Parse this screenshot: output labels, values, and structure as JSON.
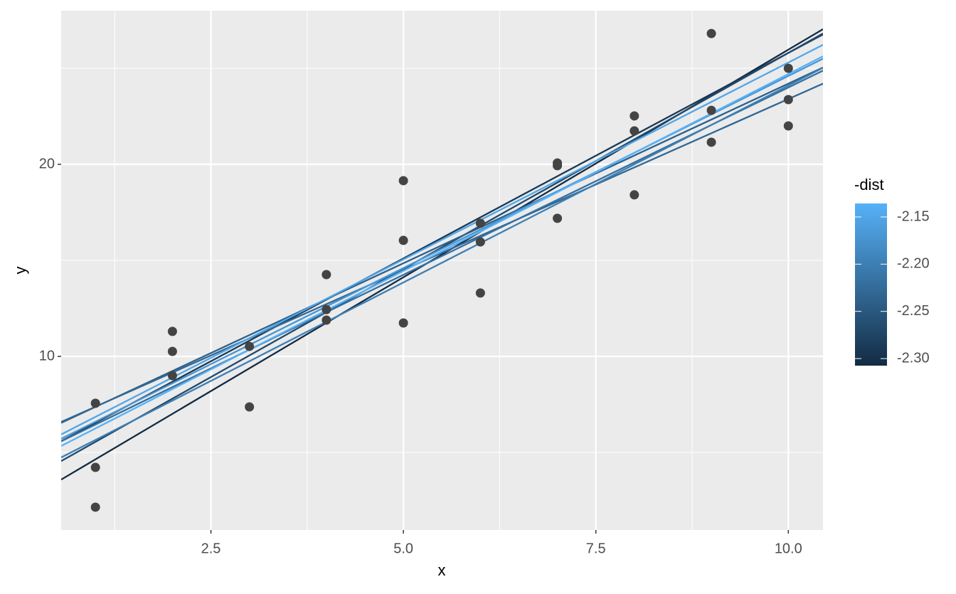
{
  "chart_data": {
    "type": "scatter-abline",
    "x_label": "x",
    "y_label": "y",
    "points": {
      "color": "#444444",
      "x": [
        1,
        1,
        1,
        2,
        2,
        2,
        3,
        3,
        4,
        4,
        4,
        5,
        5,
        5,
        6,
        6,
        6,
        7,
        7,
        7,
        8,
        8,
        8,
        9,
        9,
        9,
        10,
        10,
        10
      ],
      "y": [
        7.56,
        4.22,
        2.15,
        11.3,
        10.26,
        9.0,
        10.52,
        7.37,
        14.26,
        12.44,
        11.89,
        19.15,
        16.04,
        11.74,
        16.93,
        15.96,
        13.3,
        20.07,
        19.93,
        17.19,
        22.52,
        21.74,
        18.41,
        26.81,
        22.81,
        21.15,
        25.0,
        23.37,
        22.0
      ]
    },
    "lines": [
      {
        "intercept": 2.27,
        "slope": 2.37,
        "dist": 2.3075
      },
      {
        "intercept": 4.4,
        "slope": 2.14,
        "dist": 2.29
      },
      {
        "intercept": 3.3,
        "slope": 2.25,
        "dist": 2.27
      },
      {
        "intercept": 5.5,
        "slope": 1.87,
        "dist": 2.24
      },
      {
        "intercept": 5.6,
        "slope": 1.78,
        "dist": 2.23
      },
      {
        "intercept": 4.5,
        "slope": 1.95,
        "dist": 2.22
      },
      {
        "intercept": 3.6,
        "slope": 2.05,
        "dist": 2.2
      },
      {
        "intercept": 4.6,
        "slope": 2.0,
        "dist": 2.17
      },
      {
        "intercept": 4.8,
        "slope": 2.05,
        "dist": 2.15
      },
      {
        "intercept": 4.2,
        "slope": 2.05,
        "dist": 2.1357
      }
    ],
    "xlim": [
      0.555,
      10.45
    ],
    "ylim": [
      0.963,
      28.0
    ],
    "xticks": [
      2.5,
      {
        "value": 5,
        "label": "5.0"
      },
      7.5,
      {
        "value": 10,
        "label": "10.0"
      }
    ],
    "yticks": [
      10,
      20
    ],
    "xminor": [
      1.25,
      3.75,
      6.25,
      8.75
    ],
    "yminor": [
      5,
      15,
      25
    ],
    "legend": {
      "title": "-dist",
      "position": "right",
      "lim": [
        -2.3075,
        -2.1357
      ],
      "low_color": "#132B43",
      "high_color": "#56B1F7",
      "ticks": [
        -2.15,
        {
          "value": -2.2,
          "label": "-2.20"
        },
        -2.25,
        {
          "value": -2.3,
          "label": "-2.30"
        }
      ]
    }
  }
}
